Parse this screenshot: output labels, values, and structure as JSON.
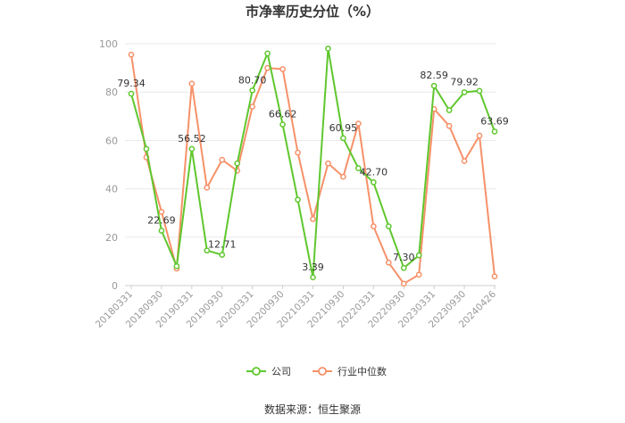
{
  "title": "市净率历史分位（%）",
  "source": "数据来源：恒生聚源",
  "colors": {
    "company": "#5fc72e",
    "industry": "#f69169",
    "grid": "#e8e8e8",
    "axis_text": "#999999",
    "label_text": "#333333"
  },
  "chart_data": {
    "type": "line",
    "title": "市净率历史分位（%）",
    "ylim": [
      0,
      100
    ],
    "yticks": [
      0,
      20,
      40,
      60,
      80,
      100
    ],
    "grid": true,
    "legend_position": "bottom",
    "x_tick_labels": [
      "20180331",
      "20180930",
      "20190331",
      "20190930",
      "20200331",
      "20200930",
      "20210331",
      "20210930",
      "20220331",
      "20220930",
      "20230331",
      "20230930",
      "20240426"
    ],
    "x_tick_positions": [
      0,
      2,
      4,
      6,
      8,
      10,
      12,
      14,
      16,
      18,
      20,
      22,
      24
    ],
    "x_count": 25,
    "series": [
      {
        "name": "公司",
        "color": "#5fc72e",
        "values": [
          79.34,
          56.5,
          22.69,
          8.0,
          56.52,
          14.5,
          12.71,
          50.5,
          80.7,
          96.0,
          66.62,
          35.5,
          3.39,
          98.0,
          60.95,
          48.5,
          42.7,
          24.5,
          7.3,
          12.5,
          82.59,
          72.5,
          79.92,
          80.5,
          63.69
        ]
      },
      {
        "name": "行业中位数",
        "color": "#f69169",
        "values": [
          95.5,
          53.0,
          30.5,
          7.0,
          83.5,
          40.5,
          52.0,
          47.5,
          74.0,
          90.0,
          89.5,
          55.0,
          27.5,
          50.5,
          45.0,
          67.0,
          24.5,
          9.5,
          0.8,
          4.5,
          73.0,
          66.0,
          51.5,
          62.0,
          3.8
        ]
      }
    ],
    "data_labels": [
      {
        "series": 0,
        "index": 0,
        "text": "79.34"
      },
      {
        "series": 0,
        "index": 2,
        "text": "22.69"
      },
      {
        "series": 0,
        "index": 4,
        "text": "56.52"
      },
      {
        "series": 0,
        "index": 6,
        "text": "12.71"
      },
      {
        "series": 0,
        "index": 8,
        "text": "80.70"
      },
      {
        "series": 0,
        "index": 10,
        "text": "66.62"
      },
      {
        "series": 0,
        "index": 12,
        "text": "3.39"
      },
      {
        "series": 0,
        "index": 14,
        "text": "60.95"
      },
      {
        "series": 0,
        "index": 16,
        "text": "42.70"
      },
      {
        "series": 0,
        "index": 18,
        "text": "7.30"
      },
      {
        "series": 0,
        "index": 20,
        "text": "82.59"
      },
      {
        "series": 0,
        "index": 22,
        "text": "79.92"
      },
      {
        "series": 0,
        "index": 24,
        "text": "63.69"
      }
    ]
  }
}
